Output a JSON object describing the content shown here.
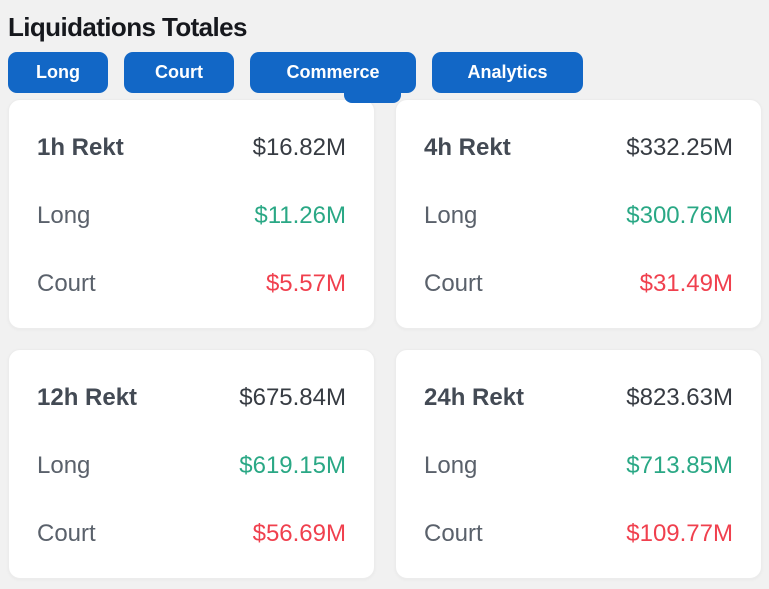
{
  "title": "Liquidations Totales",
  "tabs": [
    {
      "label": "Long",
      "active": false
    },
    {
      "label": "Court",
      "active": false
    },
    {
      "label": "Commerce",
      "active": true
    },
    {
      "label": "Analytics",
      "active": false
    }
  ],
  "cards": [
    {
      "period": "1h Rekt",
      "total": "$16.82M",
      "long": {
        "label": "Long",
        "value": "$11.26M"
      },
      "short": {
        "label": "Court",
        "value": "$5.57M"
      }
    },
    {
      "period": "4h Rekt",
      "total": "$332.25M",
      "long": {
        "label": "Long",
        "value": "$300.76M"
      },
      "short": {
        "label": "Court",
        "value": "$31.49M"
      }
    },
    {
      "period": "12h Rekt",
      "total": "$675.84M",
      "long": {
        "label": "Long",
        "value": "$619.15M"
      },
      "short": {
        "label": "Court",
        "value": "$56.69M"
      }
    },
    {
      "period": "24h Rekt",
      "total": "$823.63M",
      "long": {
        "label": "Long",
        "value": "$713.85M"
      },
      "short": {
        "label": "Court",
        "value": "$109.77M"
      }
    }
  ],
  "colors": {
    "tab_blue": "#1267c6",
    "long_green": "#2aa885",
    "short_red": "#f0404e",
    "background": "#f1f1f1",
    "card_background": "#ffffff"
  }
}
